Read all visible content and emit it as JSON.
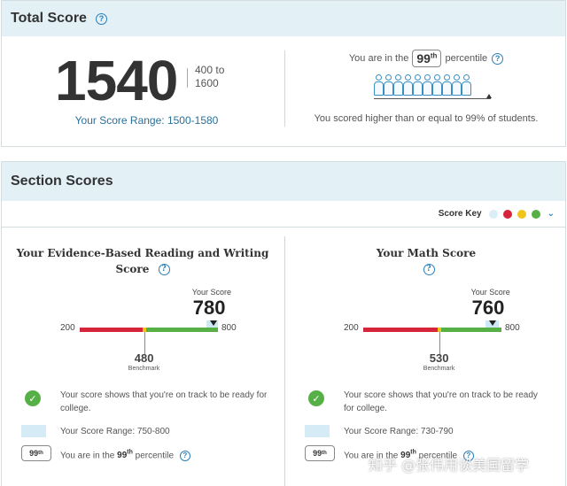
{
  "total": {
    "title": "Total Score",
    "help": "?",
    "score": "1540",
    "range_line1": "400 to",
    "range_line2": "1600",
    "score_range": "Your Score Range: 1500-1580",
    "percentile_prefix": "You are in the",
    "percentile_value": "99",
    "percentile_suffix_sup": "th",
    "percentile_word": "percentile",
    "percentile_caption": "You scored higher than or equal to 99% of students.",
    "people_count": 10
  },
  "sections": {
    "title": "Section Scores",
    "score_key_label": "Score Key",
    "score_key_colors": [
      "#dbeef6",
      "#d6243a",
      "#f0c419",
      "#56b046"
    ],
    "columns": [
      {
        "title_line1": "Your Evidence-Based Reading and Writing",
        "title_line2": "Score",
        "your_score_label": "Your Score",
        "score": "780",
        "score_value": 780,
        "min": "200",
        "max": "800",
        "range_low": 750,
        "range_high": 800,
        "benchmark": "480",
        "benchmark_value": 480,
        "benchmark_label": "Benchmark",
        "ready_text_line1": "Your score shows that you're on track to be ready for",
        "ready_text_line2": "college.",
        "range_text": "Your Score Range: 750-800",
        "pct_badge": "99",
        "pct_badge_sup": "th",
        "pct_text_prefix": "You are in the",
        "pct_text_value": "99",
        "pct_text_sup": "th",
        "pct_text_suffix": "percentile"
      },
      {
        "title_line1": "Your Math Score",
        "title_line2": "",
        "your_score_label": "Your Score",
        "score": "760",
        "score_value": 760,
        "min": "200",
        "max": "800",
        "range_low": 730,
        "range_high": 790,
        "benchmark": "530",
        "benchmark_value": 530,
        "benchmark_label": "Benchmark",
        "ready_text_line1": "Your score shows that you're on track to be ready",
        "ready_text_line2": "for college.",
        "range_text": "Your Score Range: 730-790",
        "pct_badge": "99",
        "pct_badge_sup": "th",
        "pct_text_prefix": "You are in the",
        "pct_text_value": "99",
        "pct_text_sup": "th",
        "pct_text_suffix": "percentile"
      }
    ]
  },
  "watermark": "知乎 @张伟用谈美国留学"
}
